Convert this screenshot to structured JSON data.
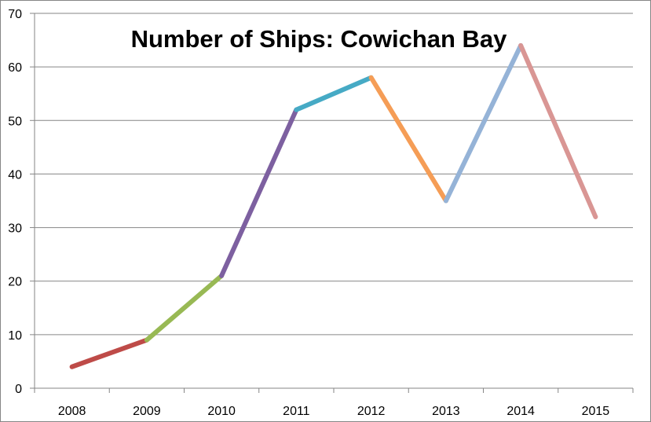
{
  "chart_data": {
    "type": "line",
    "title": "Number of Ships: Cowichan Bay",
    "xlabel": "",
    "ylabel": "",
    "categories": [
      "2008",
      "2009",
      "2010",
      "2011",
      "2012",
      "2013",
      "2014",
      "2015"
    ],
    "values": [
      4,
      9,
      21,
      52,
      58,
      35,
      64,
      32
    ],
    "segment_colors": [
      "#BE4B48",
      "#98B954",
      "#7D60A0",
      "#46AAC5",
      "#F59D56",
      "#95B3D7",
      "#D99694"
    ],
    "ylim": [
      0,
      70
    ],
    "yticks": [
      "0",
      "10",
      "20",
      "30",
      "40",
      "50",
      "60",
      "70"
    ],
    "grid": true,
    "legend": "none",
    "gridline_color": "#868686",
    "axis_color": "#868686"
  }
}
